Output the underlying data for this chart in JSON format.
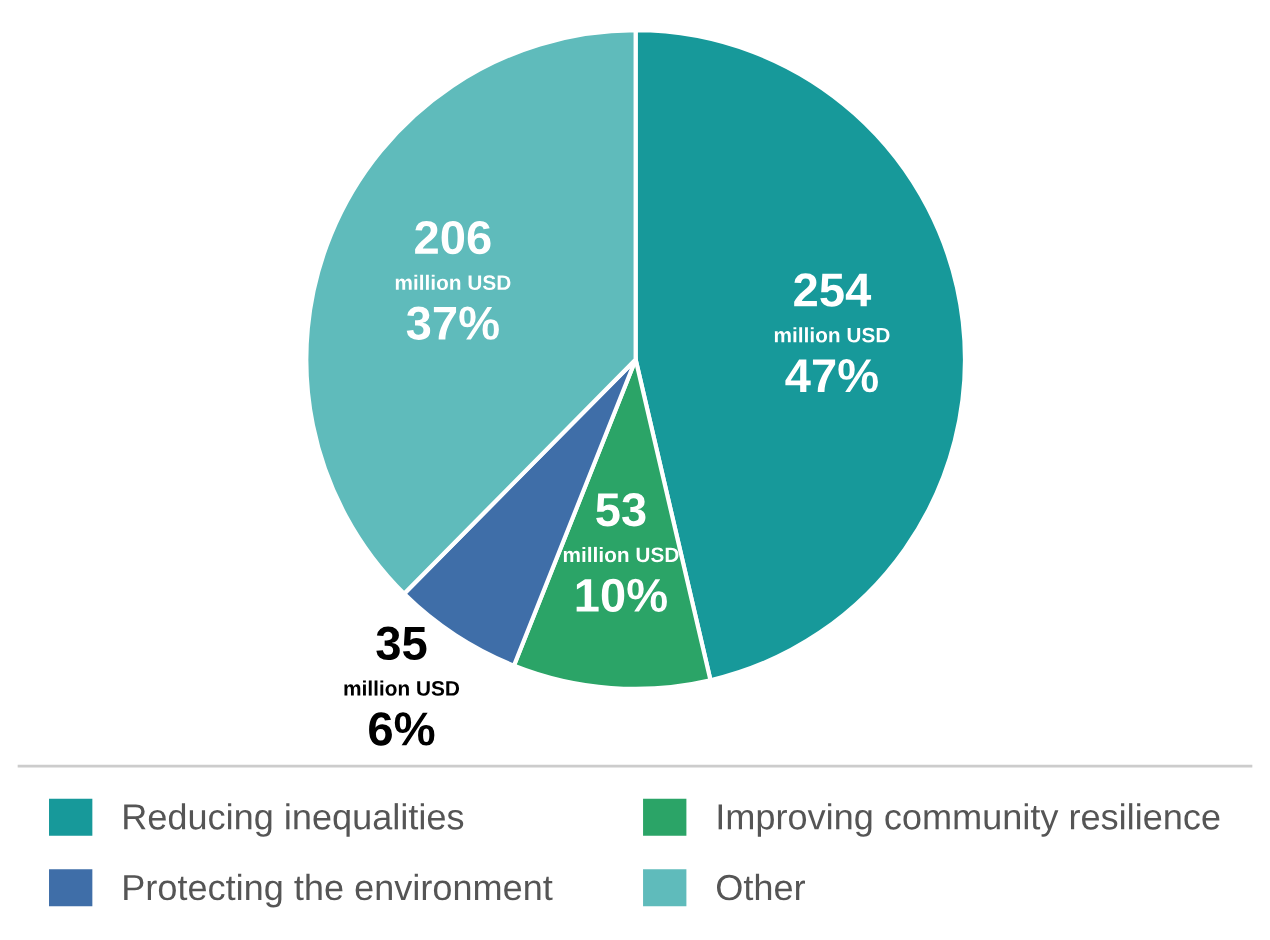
{
  "chart_data": {
    "type": "pie",
    "categories": [
      "Reducing inequalities",
      "Improving community resilience",
      "Protecting the environment",
      "Other"
    ],
    "values": [
      254,
      53,
      35,
      206
    ],
    "colors": [
      "#17999a",
      "#2ba467",
      "#3f6ea8",
      "#5fbbbb"
    ],
    "value_labels": [
      "254\nmillion USD\n47%",
      "53\nmillion USD\n10%",
      "35\nmillion USD\n6%",
      "206\nmillion USD\n37%"
    ],
    "legend": "bottom"
  }
}
